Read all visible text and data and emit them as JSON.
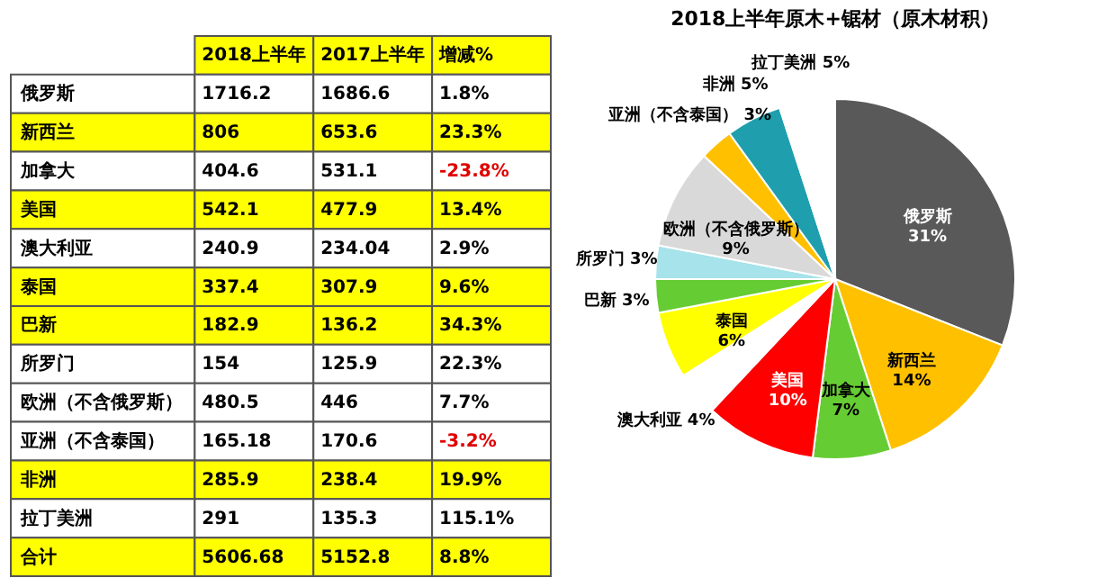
{
  "chart_data": [
    {
      "type": "heatmap",
      "categories": [
        "2018上半年",
        "2017上半年",
        "增减%"
      ],
      "y_categories": [
        "俄罗斯",
        "新西兰",
        "加拿大",
        "美国",
        "澳大利亚",
        "泰国",
        "巴新",
        "所罗门",
        "欧洲（不含俄罗斯）",
        "亚洲（不含泰国）",
        "非洲",
        "拉丁美洲",
        "合计"
      ],
      "cells": [
        [
          1716.2,
          1686.6,
          1.8
        ],
        [
          806,
          653.6,
          23.3
        ],
        [
          404.6,
          531.1,
          -23.8
        ],
        [
          542.1,
          477.9,
          13.4
        ],
        [
          240.9,
          234.04,
          2.9
        ],
        [
          337.4,
          307.9,
          9.6
        ],
        [
          182.9,
          136.2,
          34.3
        ],
        [
          154,
          125.9,
          22.3
        ],
        [
          480.5,
          446,
          7.7
        ],
        [
          165.18,
          170.6,
          -3.2
        ],
        [
          285.9,
          238.4,
          19.9
        ],
        [
          291,
          135.3,
          115.1
        ],
        [
          5606.68,
          5152.8,
          8.8
        ]
      ],
      "cell_labels": [
        [
          "1716.2",
          "1686.6",
          "1.8%"
        ],
        [
          "806",
          "653.6",
          "23.3%"
        ],
        [
          "404.6",
          "531.1",
          "-23.8%"
        ],
        [
          "542.1",
          "477.9",
          "13.4%"
        ],
        [
          "240.9",
          "234.04",
          "2.9%"
        ],
        [
          "337.4",
          "307.9",
          "9.6%"
        ],
        [
          "182.9",
          "136.2",
          "34.3%"
        ],
        [
          "154",
          "125.9",
          "22.3%"
        ],
        [
          "480.5",
          "446",
          "7.7%"
        ],
        [
          "165.18",
          "170.6",
          "-3.2%"
        ],
        [
          "285.9",
          "238.4",
          "19.9%"
        ],
        [
          "291",
          "135.3",
          "115.1%"
        ],
        [
          "5606.68",
          "5152.8",
          "8.8%"
        ]
      ],
      "colors": [
        "#ffffff",
        "#ffff00",
        "#ffffff",
        "#ffff00",
        "#ffffff",
        "#ffff00",
        "#ffff00",
        "#ffffff",
        "#ffffff",
        "#ffffff",
        "#ffff00",
        "#ffffff",
        "#ffff00"
      ]
    },
    {
      "type": "pie",
      "title": "2018上半年原木+锯材（原木材积）",
      "categories": [
        "俄罗斯",
        "新西兰",
        "加拿大",
        "美国",
        "澳大利亚",
        "泰国",
        "巴新",
        "所罗门",
        "欧洲（不含俄罗斯）",
        "亚洲（不含泰国）",
        "非洲",
        "拉丁美洲"
      ],
      "values": [
        31,
        14,
        7,
        10,
        4,
        6,
        3,
        3,
        9,
        3,
        5,
        5
      ],
      "value_labels": [
        "31%",
        "14%",
        "7%",
        "10%",
        "4%",
        "6%",
        "3%",
        "3%",
        "9%",
        "3%",
        "5%",
        "5%"
      ],
      "colors": [
        "#595959",
        "#ffc000",
        "#66cc33",
        "#ff0000",
        "#ffffff",
        "#ffff00",
        "#66cc33",
        "#a6e3ea",
        "#d9d9d9",
        "#ffc000",
        "#1f9fae",
        "#ffffff"
      ]
    }
  ]
}
